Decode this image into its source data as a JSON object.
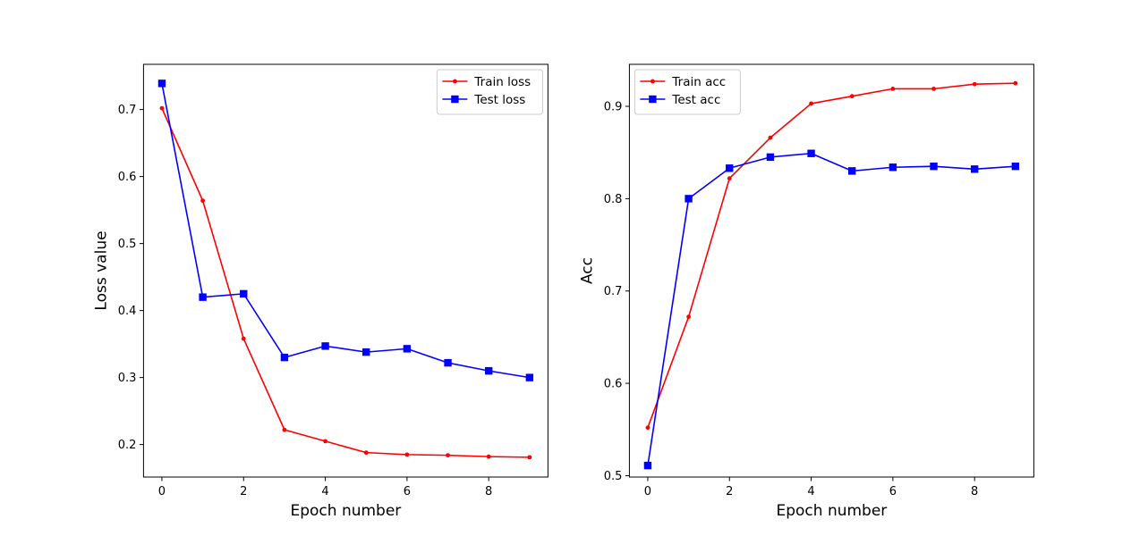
{
  "chart_data": [
    {
      "type": "line",
      "title": "",
      "xlabel": "Epoch number",
      "ylabel": "Loss value",
      "xlim": [
        -0.45,
        9.45
      ],
      "ylim": [
        0.1515,
        0.7675
      ],
      "xticks": [
        0,
        2,
        4,
        6,
        8
      ],
      "yticks": [
        0.2,
        0.3,
        0.4,
        0.5,
        0.6,
        0.7
      ],
      "grid": false,
      "legend_position": "top-right",
      "x": [
        0,
        1,
        2,
        3,
        4,
        5,
        6,
        7,
        8,
        9
      ],
      "series": [
        {
          "name": "Train loss",
          "color": "#ff0000",
          "marker": "circle",
          "values": [
            0.702,
            0.564,
            0.358,
            0.222,
            0.205,
            0.188,
            0.185,
            0.184,
            0.182,
            0.181
          ]
        },
        {
          "name": "Test loss",
          "color": "#0000ff",
          "marker": "square",
          "values": [
            0.739,
            0.42,
            0.425,
            0.33,
            0.347,
            0.338,
            0.343,
            0.322,
            0.31,
            0.3
          ]
        }
      ]
    },
    {
      "type": "line",
      "title": "",
      "xlabel": "Epoch number",
      "ylabel": "Acc",
      "xlim": [
        -0.45,
        9.45
      ],
      "ylim": [
        0.4985,
        0.9455
      ],
      "xticks": [
        0,
        2,
        4,
        6,
        8
      ],
      "yticks": [
        0.5,
        0.6,
        0.7,
        0.8,
        0.9
      ],
      "grid": false,
      "legend_position": "top-left",
      "x": [
        0,
        1,
        2,
        3,
        4,
        5,
        6,
        7,
        8,
        9
      ],
      "series": [
        {
          "name": "Train acc",
          "color": "#ff0000",
          "marker": "circle",
          "values": [
            0.552,
            0.672,
            0.822,
            0.866,
            0.903,
            0.911,
            0.919,
            0.919,
            0.924,
            0.925
          ]
        },
        {
          "name": "Test acc",
          "color": "#0000ff",
          "marker": "square",
          "values": [
            0.511,
            0.8,
            0.833,
            0.845,
            0.849,
            0.83,
            0.834,
            0.835,
            0.832,
            0.835
          ]
        }
      ]
    }
  ]
}
